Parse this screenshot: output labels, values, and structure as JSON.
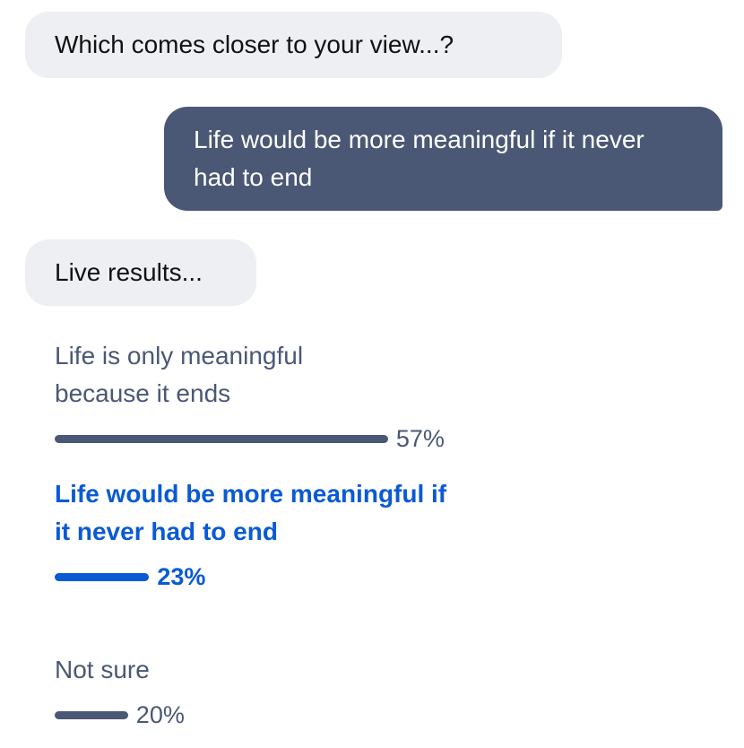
{
  "messages": [
    {
      "direction": "incoming",
      "text": "Which comes closer to your view...?"
    },
    {
      "direction": "outgoing",
      "text": "Life would be more meaningful if it never had to end"
    },
    {
      "direction": "incoming",
      "text": "Live results..."
    }
  ],
  "poll": {
    "options": [
      {
        "label": "Life is only meaningful because it ends",
        "percent": 57,
        "percent_label": "57%",
        "selected": false
      },
      {
        "label": "Life would be more meaningful if it never had to end",
        "percent": 23,
        "percent_label": "23%",
        "selected": true
      },
      {
        "label": "Not sure",
        "percent": 20,
        "percent_label": "20%",
        "selected": false
      }
    ]
  },
  "colors": {
    "incoming_bubble": "#eeeff3",
    "outgoing_bubble": "#4a5875",
    "selected": "#0a5ad4",
    "bar": "#4a5875"
  }
}
